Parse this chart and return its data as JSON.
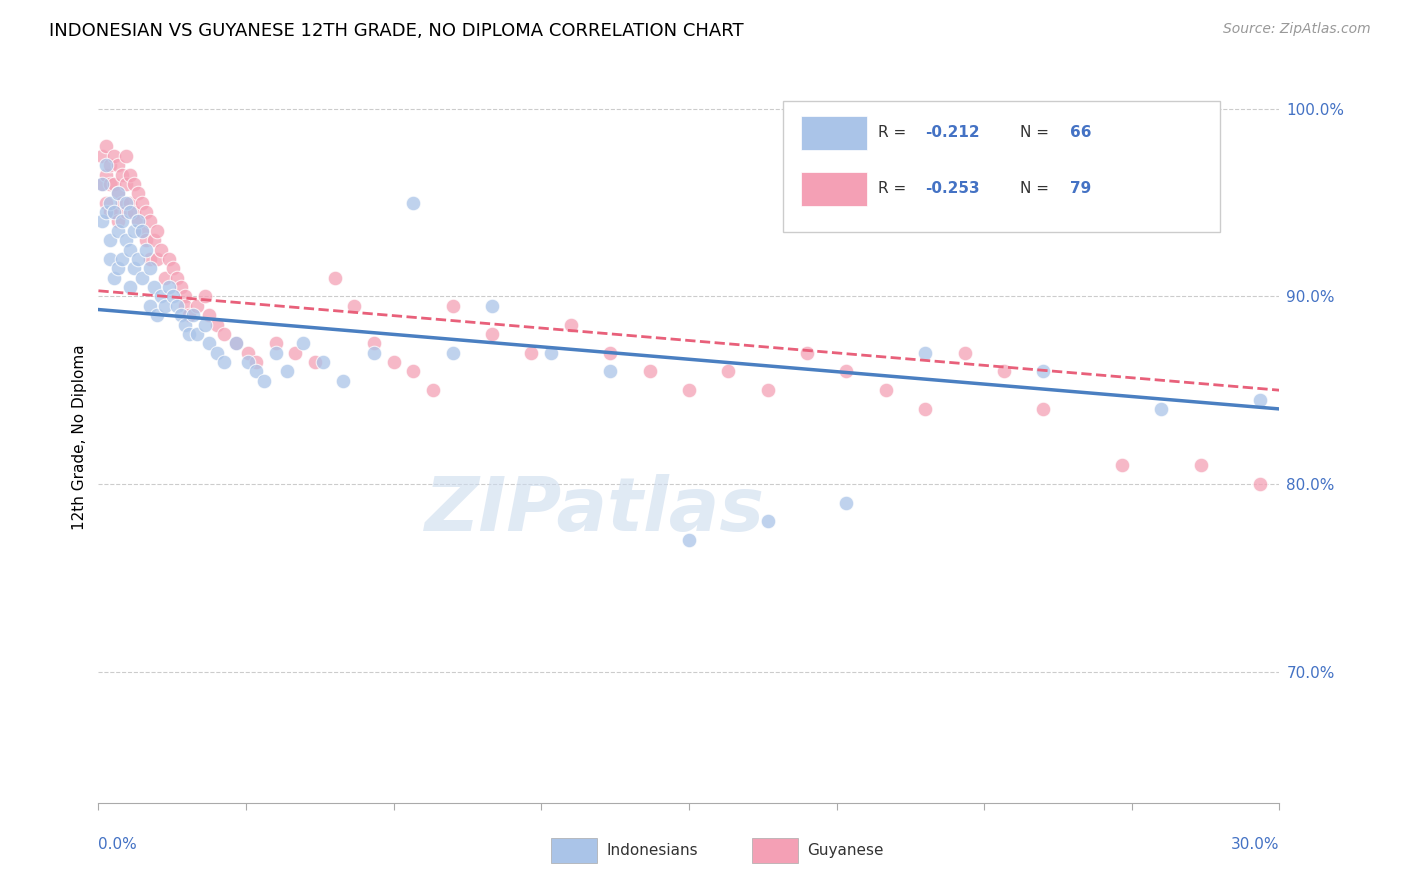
{
  "title": "INDONESIAN VS GUYANESE 12TH GRADE, NO DIPLOMA CORRELATION CHART",
  "source": "Source: ZipAtlas.com",
  "ylabel": "12th Grade, No Diploma",
  "blue_color": "#aac4e8",
  "pink_color": "#f4a0b5",
  "blue_line_color": "#4a7fc1",
  "pink_line_color": "#e8607a",
  "watermark": "ZIPatlas",
  "watermark_color": "#ccdcee",
  "title_fontsize": 13,
  "source_fontsize": 10,
  "axis_label_fontsize": 11,
  "tick_fontsize": 11,
  "xmin": 0.0,
  "xmax": 0.3,
  "ymin": 0.63,
  "ymax": 1.02,
  "blue_line_x0": 0.0,
  "blue_line_x1": 0.3,
  "blue_line_y0": 0.893,
  "blue_line_y1": 0.84,
  "pink_line_x0": 0.0,
  "pink_line_x1": 0.3,
  "pink_line_y0": 0.903,
  "pink_line_y1": 0.85,
  "blue_scatter_x": [
    0.001,
    0.001,
    0.002,
    0.002,
    0.003,
    0.003,
    0.003,
    0.004,
    0.004,
    0.005,
    0.005,
    0.005,
    0.006,
    0.006,
    0.007,
    0.007,
    0.008,
    0.008,
    0.008,
    0.009,
    0.009,
    0.01,
    0.01,
    0.011,
    0.011,
    0.012,
    0.013,
    0.013,
    0.014,
    0.015,
    0.016,
    0.017,
    0.018,
    0.019,
    0.02,
    0.021,
    0.022,
    0.023,
    0.024,
    0.025,
    0.027,
    0.028,
    0.03,
    0.032,
    0.035,
    0.038,
    0.04,
    0.042,
    0.045,
    0.048,
    0.052,
    0.057,
    0.062,
    0.07,
    0.08,
    0.09,
    0.1,
    0.115,
    0.13,
    0.15,
    0.17,
    0.19,
    0.21,
    0.24,
    0.27,
    0.295
  ],
  "blue_scatter_y": [
    0.96,
    0.94,
    0.97,
    0.945,
    0.93,
    0.95,
    0.92,
    0.945,
    0.91,
    0.955,
    0.935,
    0.915,
    0.94,
    0.92,
    0.95,
    0.93,
    0.945,
    0.925,
    0.905,
    0.935,
    0.915,
    0.94,
    0.92,
    0.935,
    0.91,
    0.925,
    0.915,
    0.895,
    0.905,
    0.89,
    0.9,
    0.895,
    0.905,
    0.9,
    0.895,
    0.89,
    0.885,
    0.88,
    0.89,
    0.88,
    0.885,
    0.875,
    0.87,
    0.865,
    0.875,
    0.865,
    0.86,
    0.855,
    0.87,
    0.86,
    0.875,
    0.865,
    0.855,
    0.87,
    0.95,
    0.87,
    0.895,
    0.87,
    0.86,
    0.77,
    0.78,
    0.79,
    0.87,
    0.86,
    0.84,
    0.845
  ],
  "pink_scatter_x": [
    0.001,
    0.001,
    0.002,
    0.002,
    0.002,
    0.003,
    0.003,
    0.003,
    0.004,
    0.004,
    0.004,
    0.005,
    0.005,
    0.005,
    0.006,
    0.006,
    0.007,
    0.007,
    0.007,
    0.008,
    0.008,
    0.009,
    0.009,
    0.01,
    0.01,
    0.011,
    0.011,
    0.012,
    0.012,
    0.013,
    0.013,
    0.014,
    0.015,
    0.015,
    0.016,
    0.017,
    0.018,
    0.019,
    0.02,
    0.021,
    0.022,
    0.022,
    0.023,
    0.025,
    0.027,
    0.028,
    0.03,
    0.032,
    0.035,
    0.038,
    0.04,
    0.045,
    0.05,
    0.055,
    0.06,
    0.065,
    0.07,
    0.075,
    0.08,
    0.085,
    0.09,
    0.1,
    0.11,
    0.12,
    0.13,
    0.14,
    0.15,
    0.16,
    0.17,
    0.18,
    0.19,
    0.2,
    0.21,
    0.22,
    0.23,
    0.24,
    0.26,
    0.28,
    0.295
  ],
  "pink_scatter_y": [
    0.975,
    0.96,
    0.98,
    0.965,
    0.95,
    0.97,
    0.96,
    0.945,
    0.975,
    0.96,
    0.945,
    0.97,
    0.955,
    0.94,
    0.965,
    0.95,
    0.975,
    0.96,
    0.945,
    0.965,
    0.95,
    0.96,
    0.945,
    0.955,
    0.94,
    0.95,
    0.935,
    0.945,
    0.93,
    0.94,
    0.92,
    0.93,
    0.935,
    0.92,
    0.925,
    0.91,
    0.92,
    0.915,
    0.91,
    0.905,
    0.9,
    0.895,
    0.89,
    0.895,
    0.9,
    0.89,
    0.885,
    0.88,
    0.875,
    0.87,
    0.865,
    0.875,
    0.87,
    0.865,
    0.91,
    0.895,
    0.875,
    0.865,
    0.86,
    0.85,
    0.895,
    0.88,
    0.87,
    0.885,
    0.87,
    0.86,
    0.85,
    0.86,
    0.85,
    0.87,
    0.86,
    0.85,
    0.84,
    0.87,
    0.86,
    0.84,
    0.81,
    0.81,
    0.8
  ]
}
